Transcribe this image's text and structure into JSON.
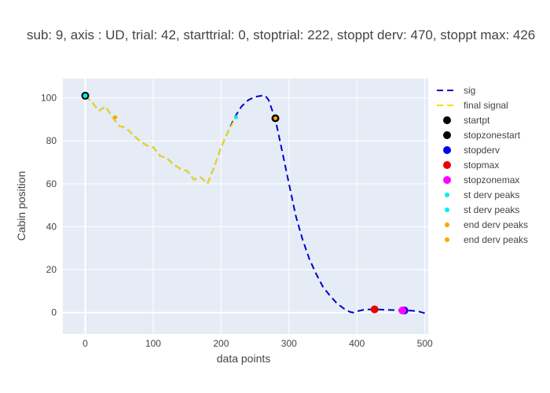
{
  "chart_data": {
    "type": "line",
    "title": "sub: 9, axis : UD, trial: 42, starttrial: 0, stoptrial: 222, stoppt derv: 470, stoppt max: 426",
    "xlabel": "data points",
    "ylabel": "Cabin position",
    "xlim": [
      -33,
      505
    ],
    "ylim": [
      -10,
      109
    ],
    "xticks": [
      0,
      100,
      200,
      300,
      400,
      500
    ],
    "yticks": [
      0,
      20,
      40,
      60,
      80,
      100
    ],
    "grid": true,
    "legend_position": "right",
    "series": [
      {
        "name": "sig",
        "kind": "line",
        "style": "dashed",
        "color": "#0000cc",
        "x": [
          0,
          10,
          20,
          30,
          40,
          50,
          60,
          70,
          80,
          90,
          100,
          110,
          120,
          130,
          140,
          150,
          160,
          170,
          180,
          190,
          200,
          210,
          220,
          230,
          240,
          250,
          260,
          265,
          270,
          280,
          290,
          300,
          310,
          320,
          330,
          340,
          350,
          360,
          370,
          380,
          390,
          395,
          400,
          410,
          420,
          430,
          440,
          450,
          460,
          470,
          480,
          490,
          500
        ],
        "y": [
          101,
          98,
          94,
          96,
          91,
          87,
          86,
          83,
          80,
          78,
          77,
          73,
          72,
          69,
          67,
          66,
          62,
          63,
          60,
          68,
          77,
          84,
          91,
          96,
          99,
          100.5,
          101,
          101,
          99,
          90,
          75,
          60,
          45,
          34,
          25,
          18,
          12,
          8,
          4.5,
          2,
          0.3,
          0,
          0.6,
          1.3,
          1.5,
          1.5,
          1.3,
          1.2,
          1.1,
          1,
          0.9,
          0.6,
          -0.3
        ]
      },
      {
        "name": "final signal",
        "kind": "line",
        "style": "dashed",
        "color": "#f0e000",
        "x": [
          0,
          10,
          20,
          30,
          40,
          50,
          60,
          70,
          80,
          90,
          100,
          110,
          120,
          130,
          140,
          150,
          160,
          170,
          180,
          190,
          200,
          210,
          222
        ],
        "y": [
          101,
          98,
          94,
          96,
          91,
          87,
          86,
          83,
          80,
          78,
          77,
          73,
          72,
          69,
          67,
          66,
          62,
          63,
          60,
          68,
          77,
          84,
          91
        ]
      },
      {
        "name": "startpt",
        "kind": "marker",
        "color": "#000000",
        "size": 5,
        "x": [
          0
        ],
        "y": [
          101
        ]
      },
      {
        "name": "stopzonestart",
        "kind": "marker",
        "color": "#000000",
        "size": 5,
        "x": [
          280
        ],
        "y": [
          90.5
        ]
      },
      {
        "name": "stopderv",
        "kind": "marker",
        "color": "#0000ee",
        "size": 5,
        "x": [
          470
        ],
        "y": [
          1
        ]
      },
      {
        "name": "stopmax",
        "kind": "marker",
        "color": "#ee0000",
        "size": 5,
        "x": [
          426
        ],
        "y": [
          1.5
        ]
      },
      {
        "name": "stopzonemax",
        "kind": "marker",
        "color": "#ff00ff",
        "size": 5,
        "x": [
          467
        ],
        "y": [
          1
        ]
      },
      {
        "name": "st derv peaks",
        "kind": "marker",
        "color": "#00eeee",
        "size": 3,
        "x": [
          0
        ],
        "y": [
          101
        ]
      },
      {
        "name": "st derv peaks",
        "kind": "marker",
        "color": "#00eeee",
        "size": 2.5,
        "x": [
          222
        ],
        "y": [
          91
        ]
      },
      {
        "name": "end derv peaks",
        "kind": "marker",
        "color": "#ffa500",
        "size": 2.5,
        "x": [
          44
        ],
        "y": [
          91
        ]
      },
      {
        "name": "end derv peaks",
        "kind": "marker",
        "color": "#ffa500",
        "size": 2.5,
        "x": [
          280
        ],
        "y": [
          90.5
        ]
      }
    ]
  }
}
